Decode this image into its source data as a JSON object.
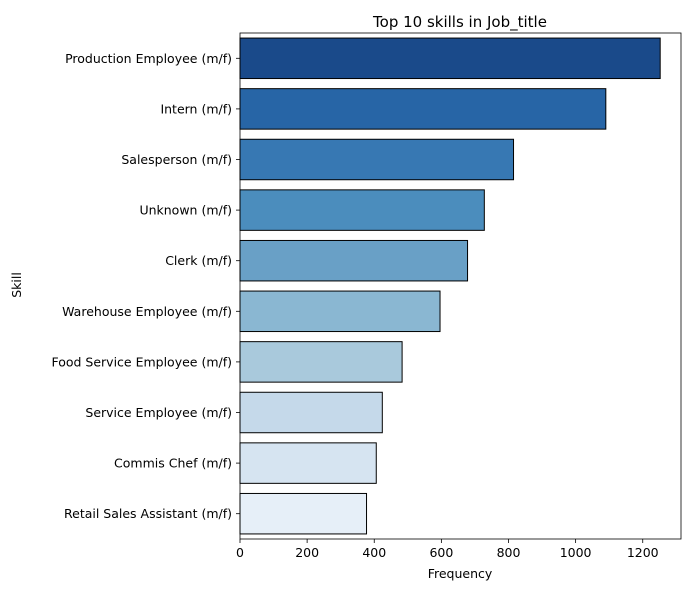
{
  "chart_data": {
    "type": "bar",
    "orientation": "horizontal",
    "title": "Top 10 skills in Job_title",
    "xlabel": "Frequency",
    "ylabel": "Skill",
    "categories": [
      "Production Employee (m/f)",
      "Intern (m/f)",
      "Salesperson (m/f)",
      "Unknown (m/f)",
      "Clerk (m/f)",
      "Warehouse Employee (m/f)",
      "Food Service Employee (m/f)",
      "Service Employee (m/f)",
      "Commis Chef (m/f)",
      "Retail Sales Assistant (m/f)"
    ],
    "values": [
      1252,
      1090,
      815,
      728,
      678,
      596,
      483,
      424,
      406,
      377
    ],
    "colors": [
      "#1a4a8a",
      "#2765a6",
      "#3778b3",
      "#4b8dbd",
      "#69a0c6",
      "#8ab7d2",
      "#a9c9dc",
      "#c5d9ea",
      "#d6e4f1",
      "#e6eff8"
    ],
    "xlim": [
      0,
      1314
    ],
    "xticks": [
      0,
      200,
      400,
      600,
      800,
      1000,
      1200
    ],
    "grid": false,
    "legend": "none"
  }
}
